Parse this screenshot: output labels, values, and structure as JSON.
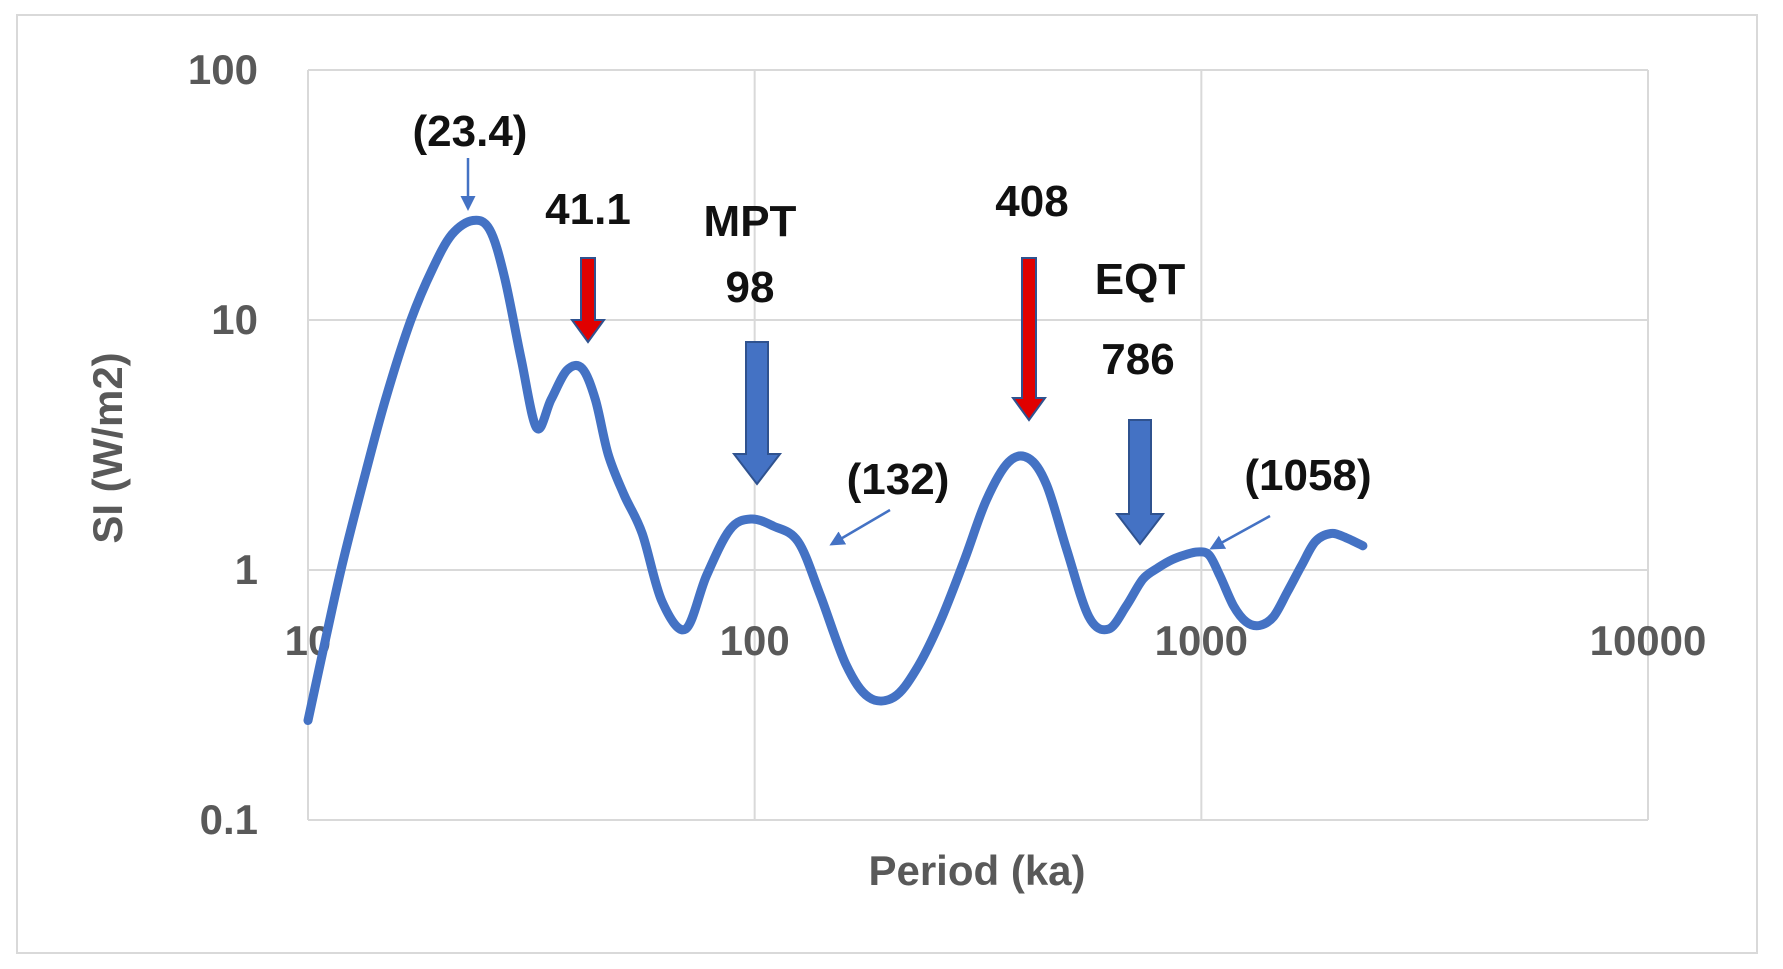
{
  "chart_data": {
    "type": "line",
    "xlabel": "Period (ka)",
    "ylabel": "SI (W/m2)",
    "x_scale": "log",
    "y_scale": "log",
    "xlim": [
      10,
      10000
    ],
    "ylim": [
      0.1,
      100
    ],
    "x_ticks": [
      "10",
      "100",
      "1000",
      "10000"
    ],
    "y_ticks": [
      "100",
      "10",
      "1",
      "0.1"
    ],
    "grid": true,
    "line_color": "#4472c4",
    "series": [
      {
        "x": [
          10,
          11,
          12,
          13.5,
          15,
          17,
          19,
          21,
          23.4,
          25.5,
          27.5,
          30,
          32.5,
          35,
          38,
          41.1,
          44,
          47,
          51,
          56,
          62,
          70,
          78,
          88,
          98,
          110,
          125,
          140,
          160,
          180,
          205,
          230,
          260,
          295,
          330,
          370,
          410,
          450,
          500,
          560,
          620,
          680,
          740,
          800,
          860,
          920,
          980,
          1040,
          1100,
          1180,
          1260,
          1350,
          1450,
          1560,
          1680,
          1800,
          1950,
          2100,
          2300
        ],
        "y": [
          0.25,
          0.55,
          1.1,
          2.5,
          5.0,
          10.0,
          16.0,
          22.0,
          25.0,
          23.0,
          15.0,
          7.0,
          3.7,
          4.8,
          6.3,
          6.4,
          4.8,
          2.9,
          2.0,
          1.4,
          0.75,
          0.58,
          0.95,
          1.45,
          1.6,
          1.5,
          1.3,
          0.8,
          0.42,
          0.31,
          0.31,
          0.4,
          0.62,
          1.1,
          1.9,
          2.7,
          2.8,
          2.2,
          1.2,
          0.65,
          0.58,
          0.72,
          0.92,
          1.02,
          1.1,
          1.15,
          1.18,
          1.15,
          0.95,
          0.72,
          0.62,
          0.6,
          0.65,
          0.82,
          1.05,
          1.3,
          1.4,
          1.35,
          1.25
        ]
      }
    ],
    "annotations": [
      {
        "label": "(23.4)",
        "x": 23.4,
        "arrow": "thin-blue"
      },
      {
        "label": "41.1",
        "x": 41.1,
        "arrow": "red"
      },
      {
        "label": "MPT",
        "x": 98,
        "arrow": "none"
      },
      {
        "label": "98",
        "x": 98,
        "arrow": "thick-blue"
      },
      {
        "label": "(132)",
        "x": 132,
        "arrow": "thin-blue"
      },
      {
        "label": "408",
        "x": 408,
        "arrow": "red"
      },
      {
        "label": "EQT",
        "x": 786,
        "arrow": "none"
      },
      {
        "label": "786",
        "x": 786,
        "arrow": "thick-blue"
      },
      {
        "label": "(1058)",
        "x": 1058,
        "arrow": "thin-blue"
      }
    ],
    "colors": {
      "thick_arrow": "#4472c4",
      "red_arrow": "#e00000",
      "thin_arrow": "#4472c4"
    }
  }
}
